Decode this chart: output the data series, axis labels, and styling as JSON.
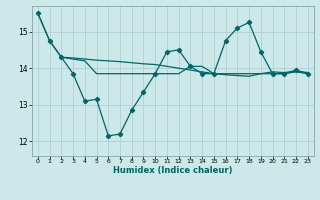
{
  "xlabel": "Humidex (Indice chaleur)",
  "background_color": "#cce8e8",
  "grid_color": "#aacccc",
  "line_color": "#006666",
  "xlim": [
    -0.5,
    23.5
  ],
  "ylim": [
    11.6,
    15.7
  ],
  "yticks": [
    12,
    13,
    14,
    15
  ],
  "xticks": [
    0,
    1,
    2,
    3,
    4,
    5,
    6,
    7,
    8,
    9,
    10,
    11,
    12,
    13,
    14,
    15,
    16,
    17,
    18,
    19,
    20,
    21,
    22,
    23
  ],
  "s1_x": [
    0,
    1,
    2,
    3,
    4,
    5,
    6,
    7,
    8,
    9,
    10,
    11,
    12,
    13,
    14,
    15,
    16,
    17,
    18,
    19,
    20,
    21,
    22,
    23
  ],
  "s1_y": [
    15.5,
    14.75,
    14.3,
    14.28,
    14.25,
    14.22,
    14.2,
    14.18,
    14.15,
    14.12,
    14.1,
    14.05,
    14.0,
    13.95,
    13.9,
    13.85,
    13.82,
    13.8,
    13.78,
    13.85,
    13.9,
    13.88,
    13.92,
    13.88
  ],
  "s2_x": [
    0,
    1,
    2,
    3,
    4,
    5,
    6,
    7,
    8,
    9,
    10,
    11,
    12,
    13,
    14,
    15,
    16,
    17,
    18,
    19,
    20,
    21,
    22,
    23
  ],
  "s2_y": [
    15.5,
    14.75,
    14.3,
    13.85,
    13.1,
    13.15,
    12.15,
    12.2,
    12.85,
    13.35,
    13.85,
    14.45,
    14.5,
    14.05,
    13.85,
    13.85,
    14.75,
    15.1,
    15.25,
    14.45,
    13.85,
    13.85,
    13.95,
    13.85
  ],
  "s3_x": [
    2,
    3,
    4,
    5,
    6,
    7,
    8,
    9,
    10,
    11,
    12,
    13,
    14,
    15,
    16,
    17,
    18,
    19,
    20,
    21,
    22,
    23
  ],
  "s3_y": [
    14.3,
    14.25,
    14.2,
    13.85,
    13.85,
    13.85,
    13.85,
    13.85,
    13.85,
    13.85,
    13.85,
    14.05,
    14.05,
    13.85,
    13.85,
    13.85,
    13.85,
    13.85,
    13.85,
    13.85,
    13.9,
    13.85
  ]
}
